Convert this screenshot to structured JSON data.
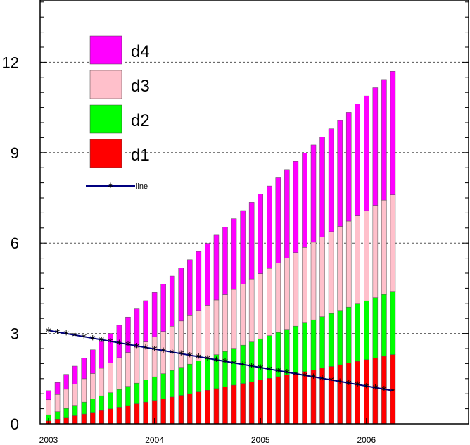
{
  "chart_data": {
    "type": "bar",
    "stacked": true,
    "bar_count": 40,
    "x_start": "2003-01",
    "x_step_months": 1,
    "xticks": [
      "2003",
      "2004",
      "2005",
      "2006"
    ],
    "yticks": [
      "0",
      "3",
      "6",
      "9",
      "12"
    ],
    "ylim": [
      0,
      14
    ],
    "grid": {
      "y_dashed": [
        3,
        6,
        9,
        12
      ]
    },
    "legend_placement": "top-left",
    "series": [
      {
        "name": "d1",
        "color": "#ff0000",
        "start": 0.1,
        "end": 2.3
      },
      {
        "name": "d2",
        "color": "#00ff00",
        "start": 0.2,
        "end": 2.1
      },
      {
        "name": "d3",
        "color": "#ffc0cb",
        "start": 0.5,
        "end": 3.2
      },
      {
        "name": "d4",
        "color": "#ff00ff",
        "start": 0.3,
        "end": 4.1
      }
    ],
    "line": {
      "name": "line",
      "color": "#000080",
      "marker": "*",
      "start": 3.1,
      "end": 1.1
    },
    "colors": {
      "stroke": "#555555",
      "line": "#000080",
      "grid": "#555555"
    }
  }
}
